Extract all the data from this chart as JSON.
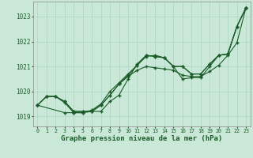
{
  "bg_color": "#cae8d8",
  "grid_color": "#b0d8c8",
  "line_color": "#1a5c28",
  "title": "Graphe pression niveau de la mer (hPa)",
  "xlim": [
    -0.5,
    23.5
  ],
  "ylim": [
    1018.6,
    1023.6
  ],
  "yticks": [
    1019,
    1020,
    1021,
    1022,
    1023
  ],
  "xticks": [
    0,
    1,
    2,
    3,
    4,
    5,
    6,
    7,
    8,
    9,
    10,
    11,
    12,
    13,
    14,
    15,
    16,
    17,
    18,
    19,
    20,
    21,
    22,
    23
  ],
  "series1_x": [
    0,
    1,
    2,
    3,
    4,
    5,
    6,
    7,
    8,
    9,
    10,
    11,
    12,
    13,
    14,
    15,
    16,
    17,
    18,
    19,
    20,
    21,
    22,
    23
  ],
  "series1_y": [
    1019.45,
    1019.8,
    1019.8,
    1019.6,
    1019.2,
    1019.2,
    1019.2,
    1019.45,
    1019.85,
    1020.3,
    1020.6,
    1020.85,
    1021.0,
    1020.95,
    1020.9,
    1020.85,
    1020.65,
    1020.6,
    1020.6,
    1020.8,
    1021.05,
    1021.45,
    1021.95,
    1023.35
  ],
  "series2_x": [
    0,
    1,
    2,
    3,
    4,
    5,
    6,
    7,
    8,
    9,
    10,
    11,
    12,
    13,
    14,
    15,
    16,
    17,
    18,
    19,
    20,
    21,
    22,
    23
  ],
  "series2_y": [
    1019.45,
    1019.8,
    1019.8,
    1019.6,
    1019.2,
    1019.2,
    1019.2,
    1019.45,
    1019.85,
    1020.3,
    1020.65,
    1021.05,
    1021.4,
    1021.45,
    1021.35,
    1021.0,
    1020.5,
    1020.55,
    1020.55,
    1021.0,
    1021.45,
    1021.5,
    1022.6,
    1023.35
  ],
  "series3_x": [
    0,
    3,
    4,
    5,
    6,
    7,
    8,
    9,
    10,
    11,
    12,
    13,
    14,
    15,
    16,
    17,
    18,
    19,
    20,
    21,
    22,
    23
  ],
  "series3_y": [
    1019.45,
    1019.15,
    1019.15,
    1019.15,
    1019.2,
    1019.2,
    1019.6,
    1019.85,
    1020.5,
    1021.1,
    1021.45,
    1021.4,
    1021.35,
    1021.0,
    1021.0,
    1020.7,
    1020.7,
    1021.1,
    1021.45,
    1021.5,
    1022.6,
    1023.35
  ],
  "series4_x": [
    0,
    1,
    2,
    3,
    4,
    5,
    6,
    7,
    8,
    9,
    10,
    11,
    12,
    13,
    14,
    15,
    16,
    17,
    18,
    19,
    20,
    21,
    22,
    23
  ],
  "series4_y": [
    1019.45,
    1019.8,
    1019.8,
    1019.55,
    1019.15,
    1019.15,
    1019.25,
    1019.5,
    1020.0,
    1020.35,
    1020.7,
    1021.05,
    1021.45,
    1021.4,
    1021.35,
    1021.0,
    1021.0,
    1020.7,
    1020.7,
    1021.1,
    1021.45,
    1021.5,
    1022.6,
    1023.35
  ]
}
